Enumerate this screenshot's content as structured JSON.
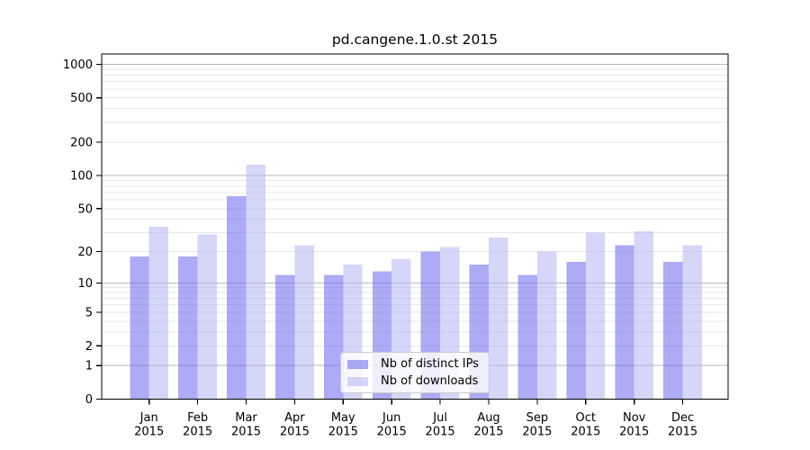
{
  "chart_data": {
    "type": "bar",
    "title": "pd.cangene.1.0.st 2015",
    "categories": [
      "Jan",
      "Feb",
      "Mar",
      "Apr",
      "May",
      "Jun",
      "Jul",
      "Aug",
      "Sep",
      "Oct",
      "Nov",
      "Dec"
    ],
    "x_year_label": "2015",
    "series": [
      {
        "name": "Nb of distinct IPs",
        "color": "#6666ee",
        "alpha": 0.55,
        "values": [
          18,
          18,
          65,
          12,
          12,
          13,
          20,
          15,
          12,
          16,
          23,
          16
        ]
      },
      {
        "name": "Nb of downloads",
        "color": "#b4b4f2",
        "alpha": 0.55,
        "values": [
          34,
          29,
          125,
          23,
          15,
          17,
          22,
          27,
          20,
          30,
          31,
          23
        ]
      }
    ],
    "yticks": [
      0,
      1,
      2,
      5,
      10,
      20,
      50,
      100,
      200,
      500,
      1000
    ],
    "ylim": [
      0,
      1200
    ],
    "yscale": "log10(1+y)",
    "xlabel": "",
    "ylabel": "",
    "grid": true,
    "legend_position": "lower-center"
  }
}
